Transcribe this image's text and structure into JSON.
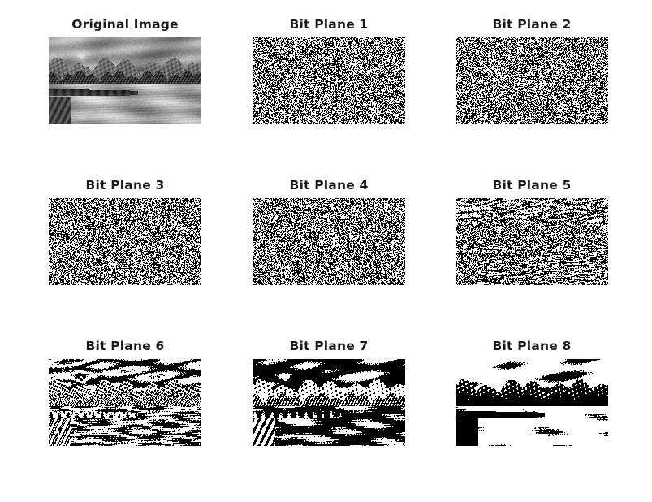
{
  "figure": {
    "panels": [
      {
        "title": "Original Image",
        "kind": "grayscale"
      },
      {
        "title": "Bit Plane 1",
        "kind": "bitplane",
        "bit": 1
      },
      {
        "title": "Bit Plane 2",
        "kind": "bitplane",
        "bit": 2
      },
      {
        "title": "Bit Plane 3",
        "kind": "bitplane",
        "bit": 3
      },
      {
        "title": "Bit Plane 4",
        "kind": "bitplane",
        "bit": 4
      },
      {
        "title": "Bit Plane 5",
        "kind": "bitplane",
        "bit": 5
      },
      {
        "title": "Bit Plane 6",
        "kind": "bitplane",
        "bit": 6
      },
      {
        "title": "Bit Plane 7",
        "kind": "bitplane",
        "bit": 7
      },
      {
        "title": "Bit Plane 8",
        "kind": "bitplane",
        "bit": 8
      }
    ],
    "scene": "grayscale landscape photo of mountains at sunset over a lake with a wooden dock",
    "colors": {
      "background": "#ffffff",
      "foreground": "#000000",
      "title": "#1a1a1a"
    }
  }
}
